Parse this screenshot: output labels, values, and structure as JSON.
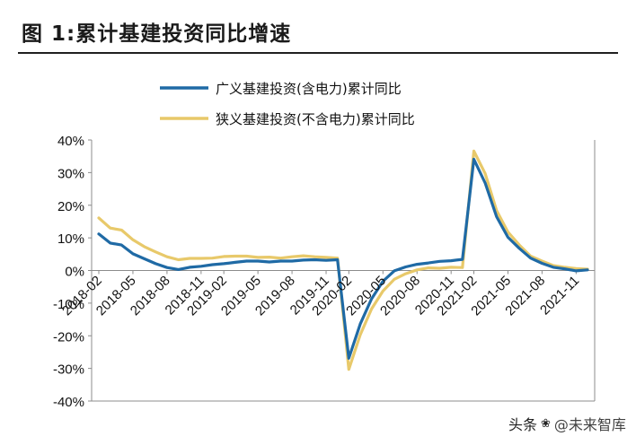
{
  "header": {
    "title": "图 1:累计基建投资同比增速"
  },
  "watermark": {
    "left": "头条",
    "right": "@未来智库"
  },
  "chart_data": {
    "type": "line",
    "title": "",
    "xlabel": "",
    "ylabel": "",
    "ylim": [
      -40,
      40
    ],
    "yticks": [
      -40,
      -30,
      -20,
      -10,
      0,
      10,
      20,
      30,
      40
    ],
    "ytick_labels": [
      "-40%",
      "-30%",
      "-20%",
      "-10%",
      "0%",
      "10%",
      "20%",
      "30%",
      "40%"
    ],
    "x": [
      "2018-02",
      "2018-03",
      "2018-04",
      "2018-05",
      "2018-06",
      "2018-07",
      "2018-08",
      "2018-09",
      "2018-10",
      "2018-11",
      "2018-12",
      "2019-02",
      "2019-03",
      "2019-04",
      "2019-05",
      "2019-06",
      "2019-07",
      "2019-08",
      "2019-09",
      "2019-10",
      "2019-11",
      "2019-12",
      "2020-02",
      "2020-03",
      "2020-04",
      "2020-05",
      "2020-06",
      "2020-07",
      "2020-08",
      "2020-09",
      "2020-10",
      "2020-11",
      "2020-12",
      "2021-02",
      "2021-03",
      "2021-04",
      "2021-05",
      "2021-06",
      "2021-07",
      "2021-08",
      "2021-09",
      "2021-10",
      "2021-11",
      "2021-12"
    ],
    "xtick_labels": [
      "2018-02",
      "2018-05",
      "2018-08",
      "2018-11",
      "2019-02",
      "2019-05",
      "2019-08",
      "2019-11",
      "2020-02",
      "2020-05",
      "2020-08",
      "2020-11",
      "2021-02",
      "2021-05",
      "2021-08",
      "2021-11"
    ],
    "grid": false,
    "legend_position": "top-center",
    "series": [
      {
        "name": "广义基建投资(含电力)累计同比",
        "color": "#1f6aa5",
        "values": [
          11.2,
          8.4,
          7.8,
          5.1,
          3.6,
          2.1,
          0.9,
          0.3,
          1.0,
          1.3,
          1.8,
          2.1,
          2.5,
          2.9,
          2.9,
          2.6,
          2.9,
          2.9,
          3.2,
          3.3,
          3.1,
          3.3,
          -26.9,
          -16.4,
          -8.7,
          -3.3,
          -0.1,
          1.1,
          1.9,
          2.3,
          2.8,
          3.0,
          3.4,
          34.1,
          26.8,
          16.5,
          10.2,
          6.8,
          3.8,
          2.2,
          1.0,
          0.5,
          -0.1,
          0.2
        ]
      },
      {
        "name": "狭义基建投资(不含电力)累计同比",
        "color": "#e8c96a",
        "values": [
          16.1,
          13.0,
          12.4,
          9.4,
          7.3,
          5.7,
          4.2,
          3.3,
          3.7,
          3.7,
          3.8,
          4.3,
          4.4,
          4.4,
          4.0,
          4.1,
          3.8,
          4.2,
          4.5,
          4.2,
          4.0,
          3.8,
          -30.3,
          -19.7,
          -11.8,
          -6.3,
          -2.7,
          -1.0,
          0.2,
          0.8,
          0.7,
          1.0,
          0.9,
          36.6,
          29.7,
          18.4,
          11.8,
          7.8,
          4.4,
          2.9,
          1.5,
          1.0,
          0.6,
          0.4
        ]
      }
    ]
  }
}
